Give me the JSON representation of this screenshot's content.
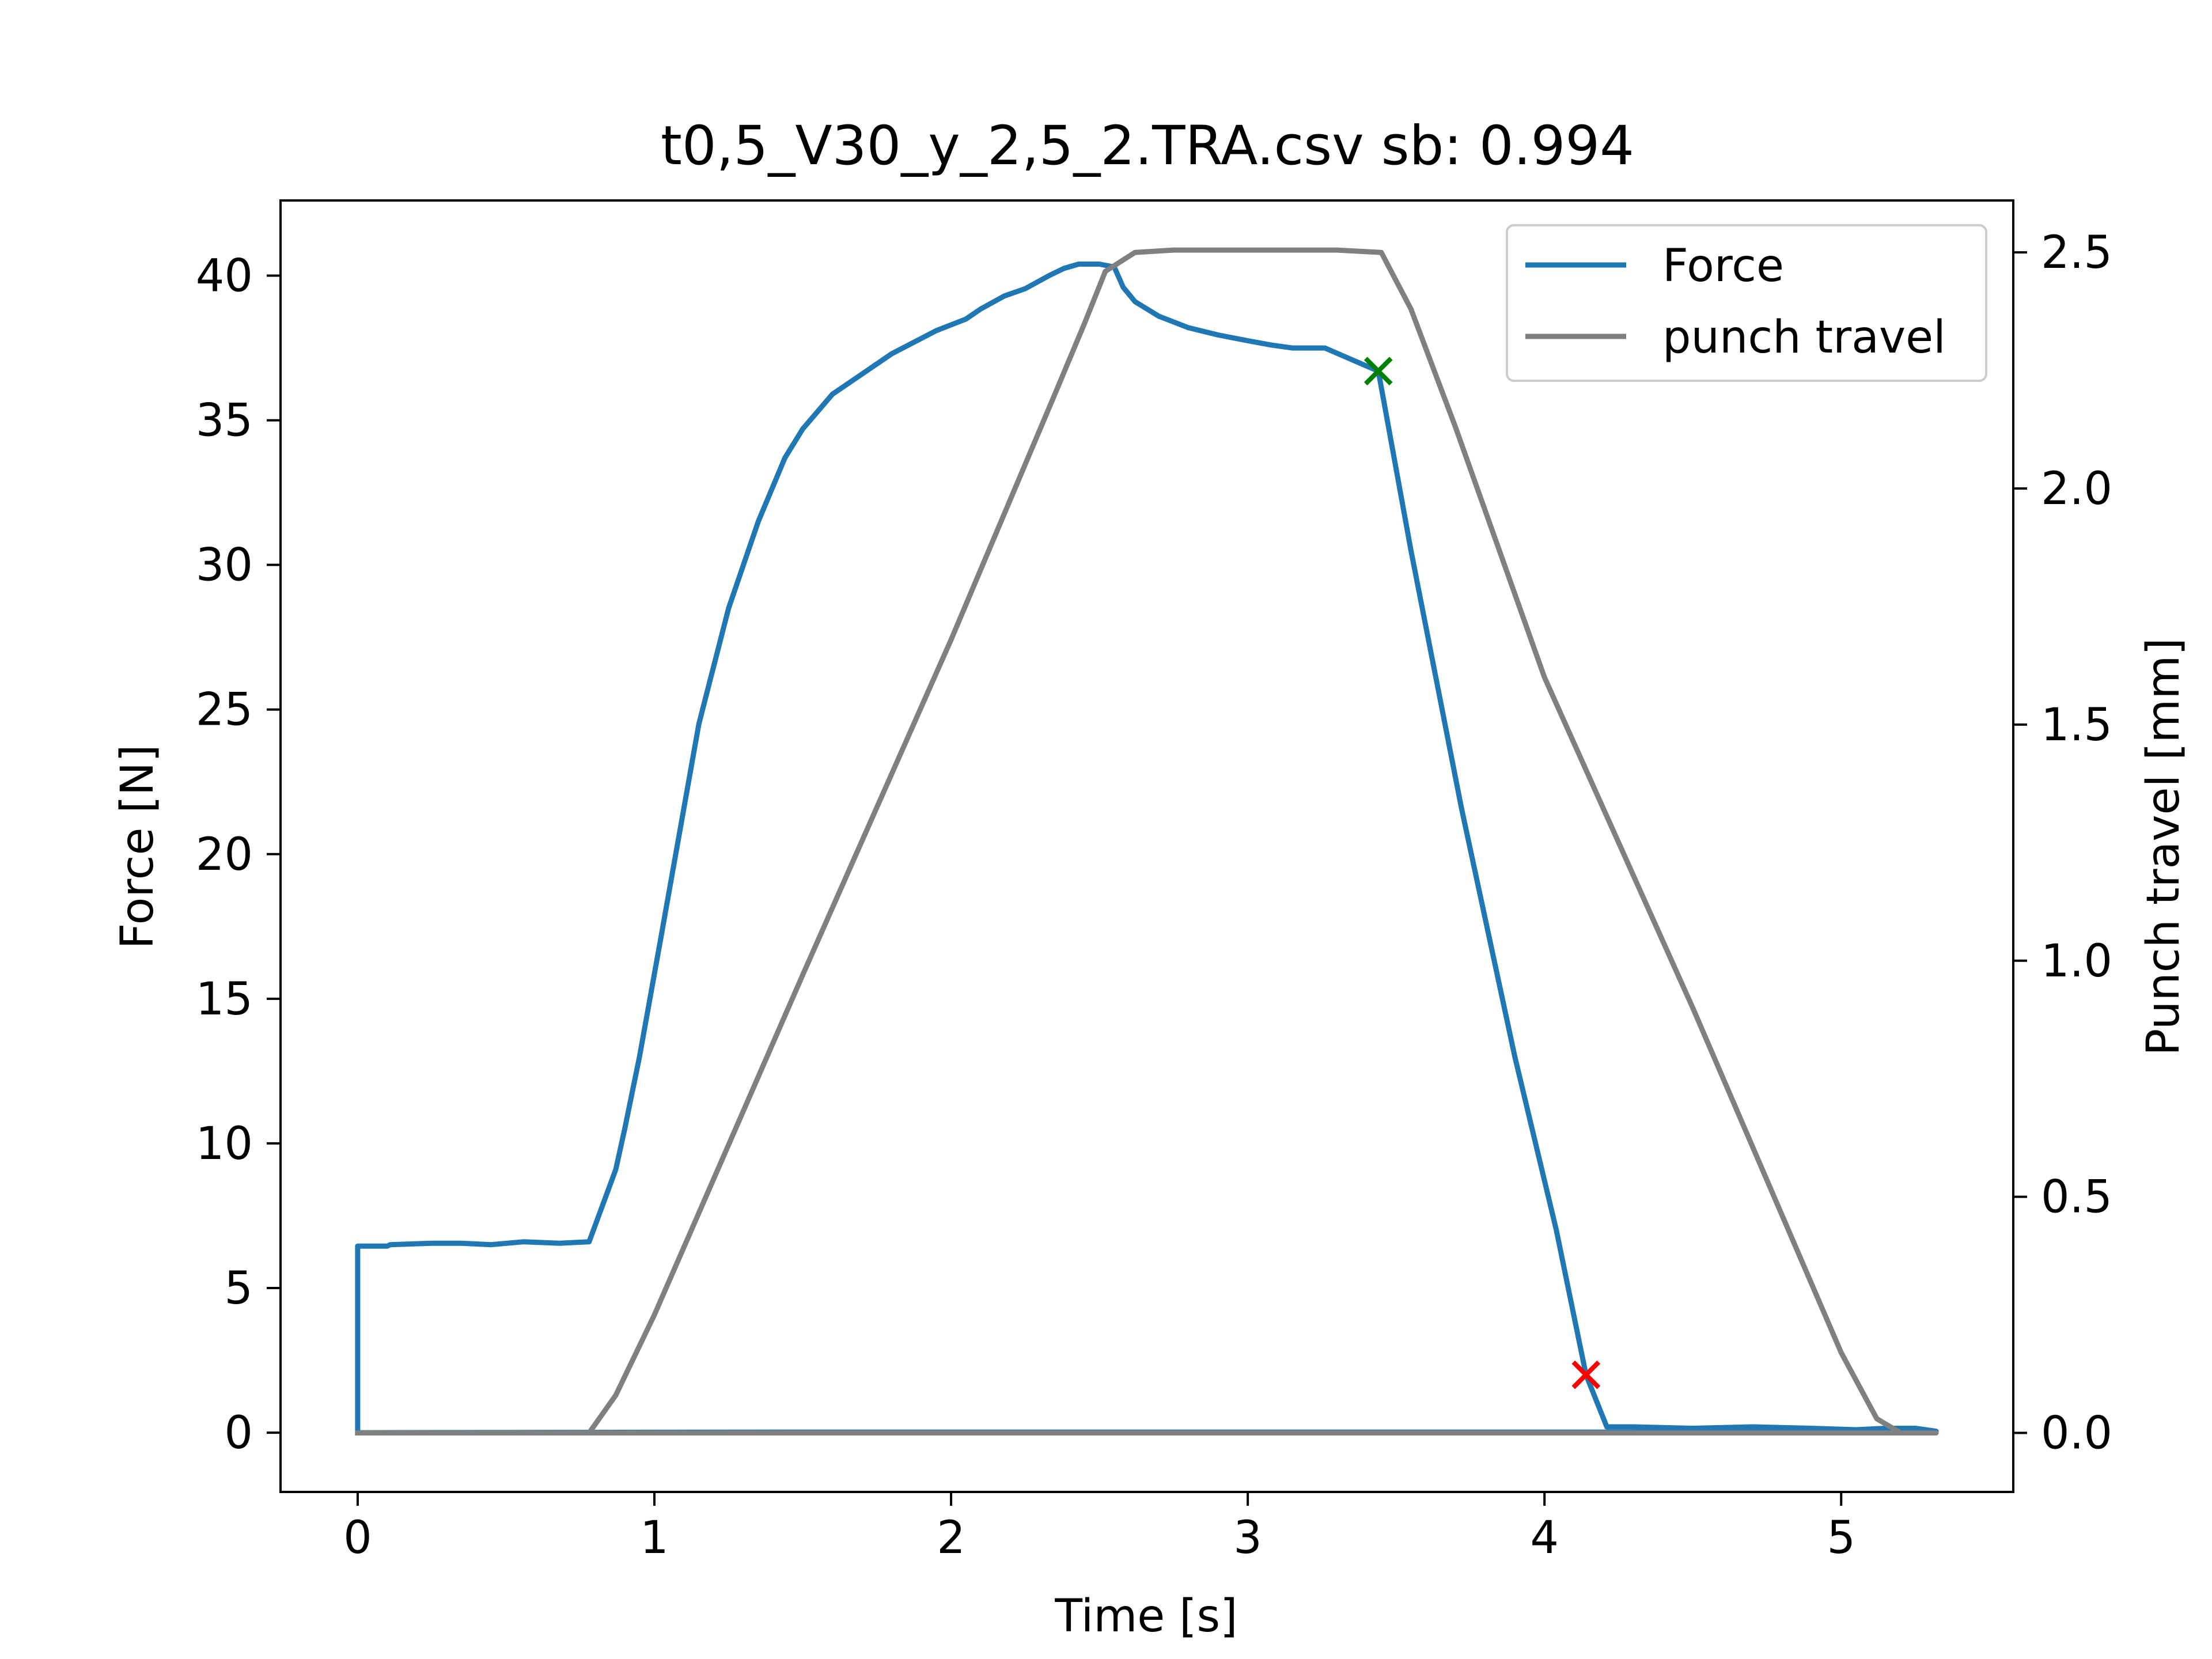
{
  "chart_data": {
    "type": "line",
    "title": "t0,5_V30_y_2,5_2.TRA.csv sb: 0.994",
    "xlabel": "Time [s]",
    "ylabel": "Force [N]",
    "y2label": "Punch travel [mm]",
    "xlim": [
      -0.26,
      5.58
    ],
    "ylim": [
      -2.05,
      42.6
    ],
    "y2lim": [
      -0.125,
      2.61
    ],
    "x_ticks": [
      0,
      1,
      2,
      3,
      4,
      5
    ],
    "y_ticks": [
      0,
      5,
      10,
      15,
      20,
      25,
      30,
      35,
      40
    ],
    "y2_ticks": [
      0.0,
      0.5,
      1.0,
      1.5,
      2.0,
      2.5
    ],
    "x_tick_labels": [
      "0",
      "1",
      "2",
      "3",
      "4",
      "5"
    ],
    "y_tick_labels": [
      "0",
      "5",
      "10",
      "15",
      "20",
      "25",
      "30",
      "35",
      "40"
    ],
    "y2_tick_labels": [
      "0.0",
      "0.5",
      "1.0",
      "1.5",
      "2.0",
      "2.5"
    ],
    "legend": {
      "position": "upper right",
      "entries": [
        "Force",
        "punch travel"
      ]
    },
    "series": [
      {
        "name": "Force",
        "axis": "left",
        "color": "#1f77b4",
        "points": [
          [
            0.0,
            0.0
          ],
          [
            0.0,
            6.45
          ],
          [
            0.1,
            6.45
          ],
          [
            0.11,
            6.5
          ],
          [
            0.25,
            6.55
          ],
          [
            0.35,
            6.55
          ],
          [
            0.45,
            6.5
          ],
          [
            0.56,
            6.6
          ],
          [
            0.68,
            6.55
          ],
          [
            0.78,
            6.6
          ],
          [
            0.87,
            9.1
          ],
          [
            0.9,
            10.5
          ],
          [
            0.95,
            13.0
          ],
          [
            1.02,
            17.0
          ],
          [
            1.15,
            24.5
          ],
          [
            1.25,
            28.5
          ],
          [
            1.35,
            31.5
          ],
          [
            1.44,
            33.7
          ],
          [
            1.5,
            34.7
          ],
          [
            1.6,
            35.9
          ],
          [
            1.7,
            36.6
          ],
          [
            1.8,
            37.3
          ],
          [
            1.95,
            38.1
          ],
          [
            2.05,
            38.5
          ],
          [
            2.1,
            38.85
          ],
          [
            2.18,
            39.3
          ],
          [
            2.25,
            39.55
          ],
          [
            2.33,
            40.0
          ],
          [
            2.38,
            40.25
          ],
          [
            2.43,
            40.4
          ],
          [
            2.5,
            40.4
          ],
          [
            2.55,
            40.3
          ],
          [
            2.58,
            39.6
          ],
          [
            2.62,
            39.1
          ],
          [
            2.7,
            38.6
          ],
          [
            2.8,
            38.2
          ],
          [
            2.9,
            37.95
          ],
          [
            3.0,
            37.75
          ],
          [
            3.08,
            37.6
          ],
          [
            3.15,
            37.5
          ],
          [
            3.26,
            37.5
          ],
          [
            3.44,
            36.7
          ],
          [
            3.55,
            30.5
          ],
          [
            3.72,
            21.6
          ],
          [
            3.9,
            13.0
          ],
          [
            4.04,
            7.0
          ],
          [
            4.14,
            2.0
          ],
          [
            4.21,
            0.2
          ],
          [
            4.3,
            0.2
          ],
          [
            4.5,
            0.15
          ],
          [
            4.7,
            0.2
          ],
          [
            4.9,
            0.15
          ],
          [
            5.05,
            0.1
          ],
          [
            5.15,
            0.15
          ],
          [
            5.25,
            0.15
          ],
          [
            5.32,
            0.05
          ],
          [
            5.0,
            0.02
          ],
          [
            4.5,
            0.02
          ],
          [
            3.0,
            0.02
          ],
          [
            1.5,
            0.02
          ],
          [
            0.0,
            0.0
          ]
        ]
      },
      {
        "name": "punch travel",
        "axis": "right",
        "color": "#808080",
        "points": [
          [
            0.0,
            0.0
          ],
          [
            0.78,
            0.0
          ],
          [
            0.87,
            0.08
          ],
          [
            1.0,
            0.25
          ],
          [
            1.5,
            0.97
          ],
          [
            2.0,
            1.68
          ],
          [
            2.35,
            2.2
          ],
          [
            2.45,
            2.35
          ],
          [
            2.52,
            2.46
          ],
          [
            2.62,
            2.5
          ],
          [
            2.75,
            2.505
          ],
          [
            3.0,
            2.505
          ],
          [
            3.3,
            2.505
          ],
          [
            3.45,
            2.5
          ],
          [
            3.55,
            2.38
          ],
          [
            3.7,
            2.13
          ],
          [
            4.0,
            1.6
          ],
          [
            4.5,
            0.9
          ],
          [
            5.0,
            0.17
          ],
          [
            5.12,
            0.03
          ],
          [
            5.2,
            0.0
          ],
          [
            5.32,
            0.0
          ],
          [
            4.0,
            0.0
          ],
          [
            2.0,
            0.0
          ],
          [
            0.0,
            0.0
          ]
        ]
      }
    ],
    "markers": [
      {
        "x": 3.44,
        "y": 36.7,
        "symbol": "x",
        "color": "#008000",
        "axis": "left"
      },
      {
        "x": 4.14,
        "y": 2.0,
        "symbol": "x",
        "color": "#ff0000",
        "axis": "left"
      }
    ]
  }
}
